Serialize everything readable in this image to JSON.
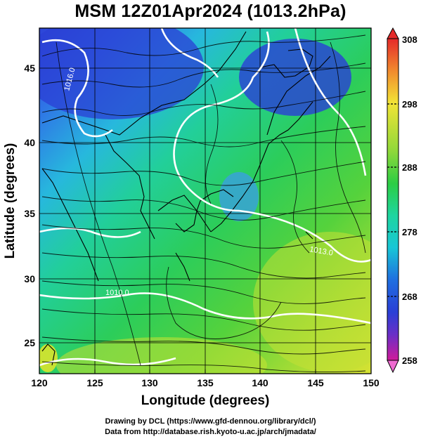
{
  "title": "MSM 12Z01Apr2024 (1013.2hPa)",
  "x_axis": {
    "label": "Longitude (degrees)",
    "ticks": [
      "120",
      "125",
      "130",
      "135",
      "140",
      "145",
      "150"
    ]
  },
  "y_axis": {
    "label": "Latitude  (degrees)",
    "ticks": [
      "25",
      "30",
      "35",
      "40",
      "45"
    ]
  },
  "colorbar": {
    "ticks": [
      "308",
      "298",
      "288",
      "278",
      "268",
      "258"
    ],
    "colors": [
      "#d01a6a",
      "#c93aa4",
      "#6a2fc7",
      "#2a3fd6",
      "#1f7fe0",
      "#18c6d6",
      "#1ed59a",
      "#2ccd44",
      "#7fd63a",
      "#c8e233",
      "#f2e436",
      "#f7b52e",
      "#ee6a2e",
      "#e52a2a"
    ]
  },
  "contour_labels": [
    "1016.0",
    "1013.0",
    "1010.0"
  ],
  "credits": {
    "line1": "Drawing by DCL (https://www.gfd-dennou.org/library/dcl/)",
    "line2": "Data from http://database.rish.kyoto-u.ac.jp/arch/jmadata/"
  }
}
